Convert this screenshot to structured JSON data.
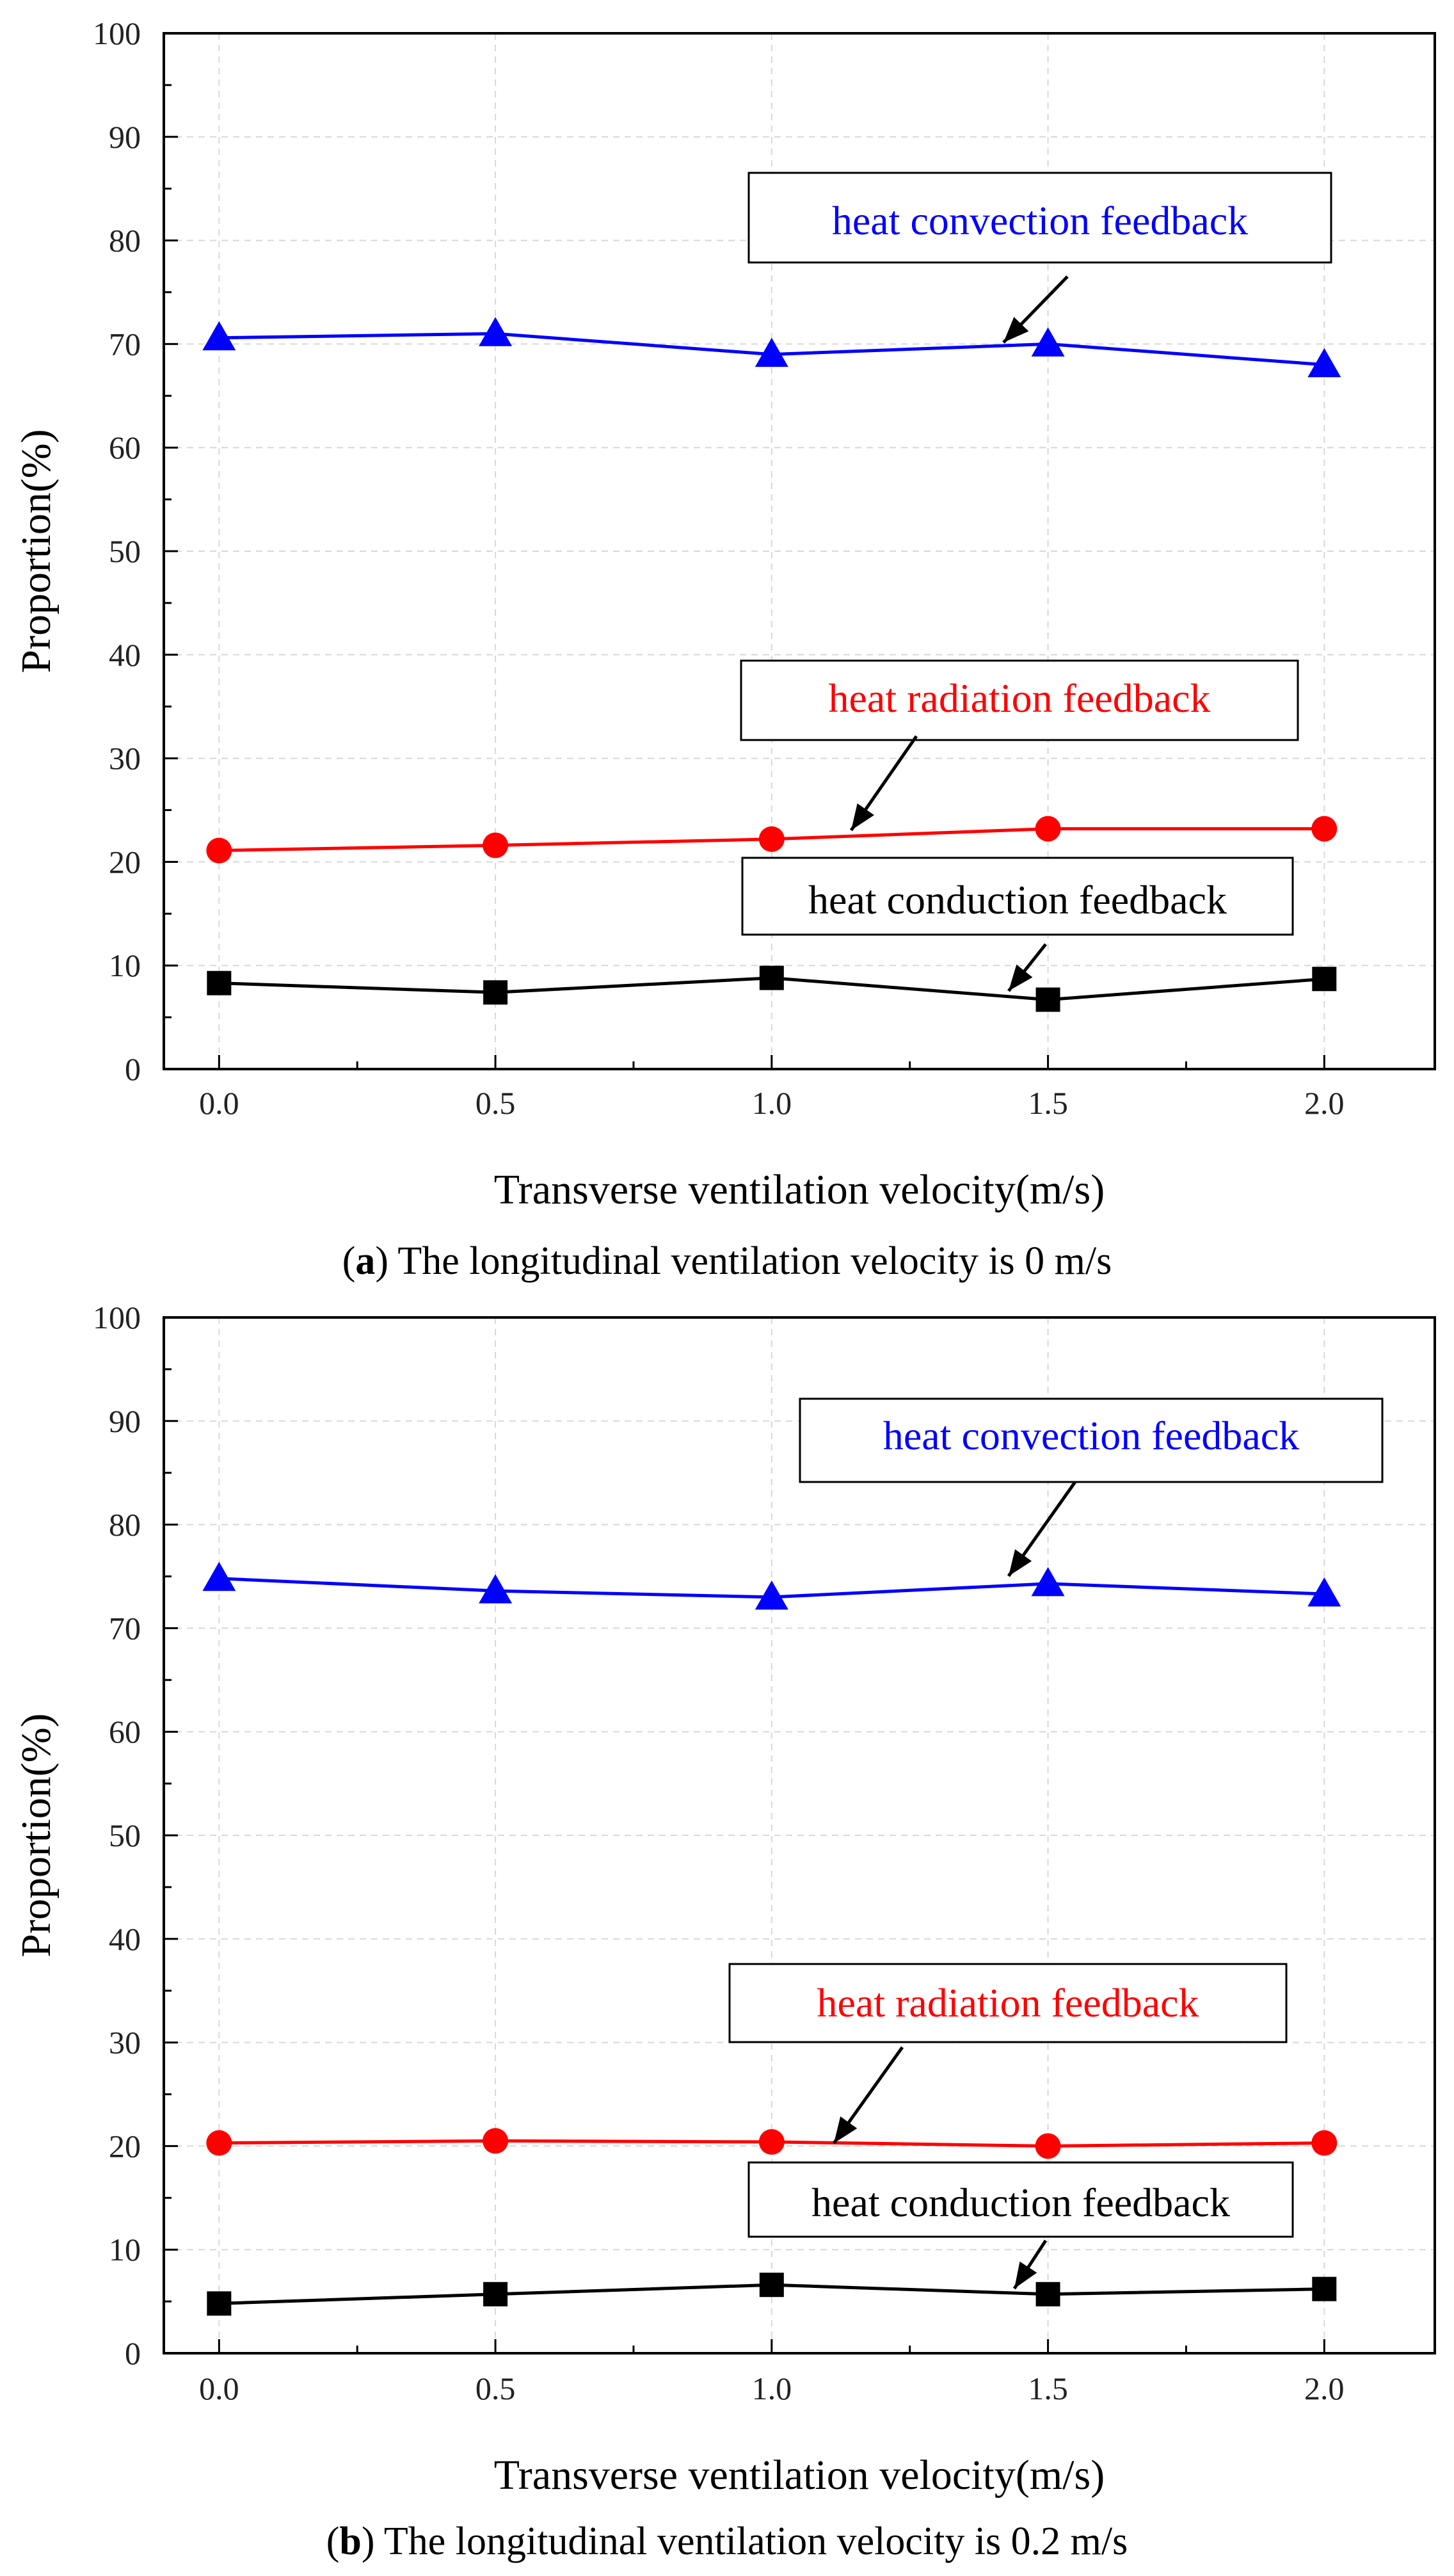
{
  "colors": {
    "convection": "#0000ff",
    "radiation": "#ff0000",
    "conduction": "#000000"
  },
  "chart_data": [
    {
      "type": "line",
      "panel": "a",
      "caption_prefix": "(",
      "caption_letter": "a",
      "caption_text": ") The longitudinal ventilation velocity is 0 m/s",
      "xlabel": "Transverse ventilation velocity(m/s)",
      "ylabel": "Proportion(%)",
      "xlim": [
        -0.1,
        2.2
      ],
      "ylim": [
        0,
        100
      ],
      "x_ticks": [
        "0.0",
        "0.5",
        "1.0",
        "1.5",
        "2.0"
      ],
      "y_ticks": [
        "0",
        "10",
        "20",
        "30",
        "40",
        "50",
        "60",
        "70",
        "80",
        "90",
        "100"
      ],
      "grid": true,
      "x": [
        0.0,
        0.5,
        1.0,
        1.5,
        2.0
      ],
      "series": [
        {
          "key": "convection",
          "name": "heat convection feedback",
          "marker": "triangle",
          "values": [
            70.6,
            71.0,
            69.0,
            70.0,
            68.0
          ]
        },
        {
          "key": "radiation",
          "name": "heat radiation feedback",
          "marker": "circle",
          "values": [
            21.1,
            21.6,
            22.2,
            23.2,
            23.2
          ]
        },
        {
          "key": "conduction",
          "name": "heat conduction feedback",
          "marker": "square",
          "values": [
            8.3,
            7.4,
            8.8,
            6.7,
            8.7
          ]
        }
      ],
      "annotations": [
        {
          "series": "convection",
          "text": "heat convection feedback"
        },
        {
          "series": "radiation",
          "text": "heat radiation feedback"
        },
        {
          "series": "conduction",
          "text": "heat conduction feedback"
        }
      ]
    },
    {
      "type": "line",
      "panel": "b",
      "caption_prefix": "(",
      "caption_letter": "b",
      "caption_text": ") The longitudinal ventilation velocity is 0.2 m/s",
      "xlabel": "Transverse ventilation velocity(m/s)",
      "ylabel": "Proportion(%)",
      "xlim": [
        -0.1,
        2.2
      ],
      "ylim": [
        0,
        100
      ],
      "x_ticks": [
        "0.0",
        "0.5",
        "1.0",
        "1.5",
        "2.0"
      ],
      "y_ticks": [
        "0",
        "10",
        "20",
        "30",
        "40",
        "50",
        "60",
        "70",
        "80",
        "90",
        "100"
      ],
      "grid": true,
      "x": [
        0.0,
        0.5,
        1.0,
        1.5,
        2.0
      ],
      "series": [
        {
          "key": "convection",
          "name": "heat convection feedback",
          "marker": "triangle",
          "values": [
            74.8,
            73.6,
            73.0,
            74.3,
            73.3
          ]
        },
        {
          "key": "radiation",
          "name": "heat radiation feedback",
          "marker": "circle",
          "values": [
            20.3,
            20.5,
            20.4,
            20.0,
            20.3
          ]
        },
        {
          "key": "conduction",
          "name": "heat conduction feedback",
          "marker": "square",
          "values": [
            4.8,
            5.7,
            6.6,
            5.7,
            6.2
          ]
        }
      ],
      "annotations": [
        {
          "series": "convection",
          "text": "heat convection feedback"
        },
        {
          "series": "radiation",
          "text": "heat radiation feedback"
        },
        {
          "series": "conduction",
          "text": "heat conduction feedback"
        }
      ]
    }
  ]
}
